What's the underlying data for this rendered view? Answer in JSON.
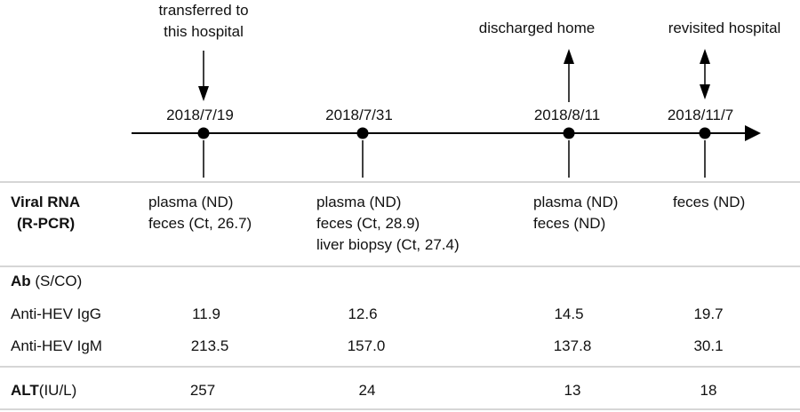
{
  "timeline": {
    "events": [
      {
        "date": "2018/7/19",
        "annotation": [
          "transferred to",
          "this hospital"
        ]
      },
      {
        "date": "2018/7/31",
        "annotation": []
      },
      {
        "date": "2018/8/11",
        "annotation": [
          "discharged home"
        ]
      },
      {
        "date": "2018/11/7",
        "annotation": [
          "revisited hospital"
        ]
      }
    ]
  },
  "table": {
    "viral_rna": {
      "label_line1": "Viral RNA",
      "label_line2": "(R-PCR)",
      "cells": [
        [
          "plasma (ND)",
          "feces (Ct, 26.7)"
        ],
        [
          "plasma (ND)",
          "feces (Ct, 28.9)",
          "liver biopsy (Ct, 27.4)"
        ],
        [
          "plasma (ND)",
          "feces (ND)"
        ],
        [
          "feces (ND)"
        ]
      ]
    },
    "ab": {
      "label_bold": "Ab",
      "label_unit": " (S/CO)",
      "rows": [
        {
          "label": "Anti-HEV IgG",
          "values": [
            "11.9",
            "12.6",
            "14.5",
            "19.7"
          ]
        },
        {
          "label": "Anti-HEV IgM",
          "values": [
            "213.5",
            "157.0",
            "137.8",
            "30.1"
          ]
        }
      ]
    },
    "alt": {
      "label_bold": "ALT",
      "label_unit": "(IU/L)",
      "values": [
        "257",
        "24",
        "13",
        "18"
      ]
    }
  }
}
